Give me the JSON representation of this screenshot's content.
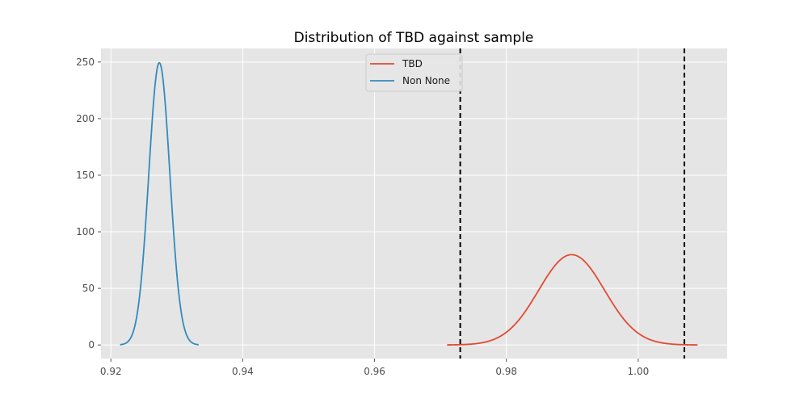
{
  "chart_data": {
    "type": "line",
    "title": "Distribution of TBD against sample",
    "xlabel": "",
    "ylabel": "",
    "xlim": [
      0.9185,
      1.0135
    ],
    "ylim": [
      -12,
      262
    ],
    "x_ticks": [
      0.92,
      0.94,
      0.96,
      0.98,
      1.0
    ],
    "x_tick_labels": [
      "0.92",
      "0.94",
      "0.96",
      "0.98",
      "1.00"
    ],
    "y_ticks": [
      0,
      50,
      100,
      150,
      200,
      250
    ],
    "y_tick_labels": [
      "0",
      "50",
      "100",
      "150",
      "200",
      "250"
    ],
    "grid": true,
    "legend_position": "top-center",
    "series": [
      {
        "name": "TBD",
        "color": "#E24A33",
        "distribution": "normal",
        "mean": 0.9899,
        "sd": 0.005,
        "x_range": [
          0.971,
          1.009
        ]
      },
      {
        "name": "Non None",
        "color": "#348ABD",
        "distribution": "normal",
        "mean": 0.92735,
        "sd": 0.0016,
        "x_range": [
          0.9214,
          0.9333
        ]
      }
    ],
    "vertical_lines": [
      {
        "x": 0.973,
        "style": "dashed",
        "color": "#000000"
      },
      {
        "x": 1.007,
        "style": "dashed",
        "color": "#000000"
      }
    ],
    "colors": {
      "plot_background": "#E5E5E5",
      "grid": "#FFFFFF",
      "figure_background": "#FFFFFF"
    }
  }
}
